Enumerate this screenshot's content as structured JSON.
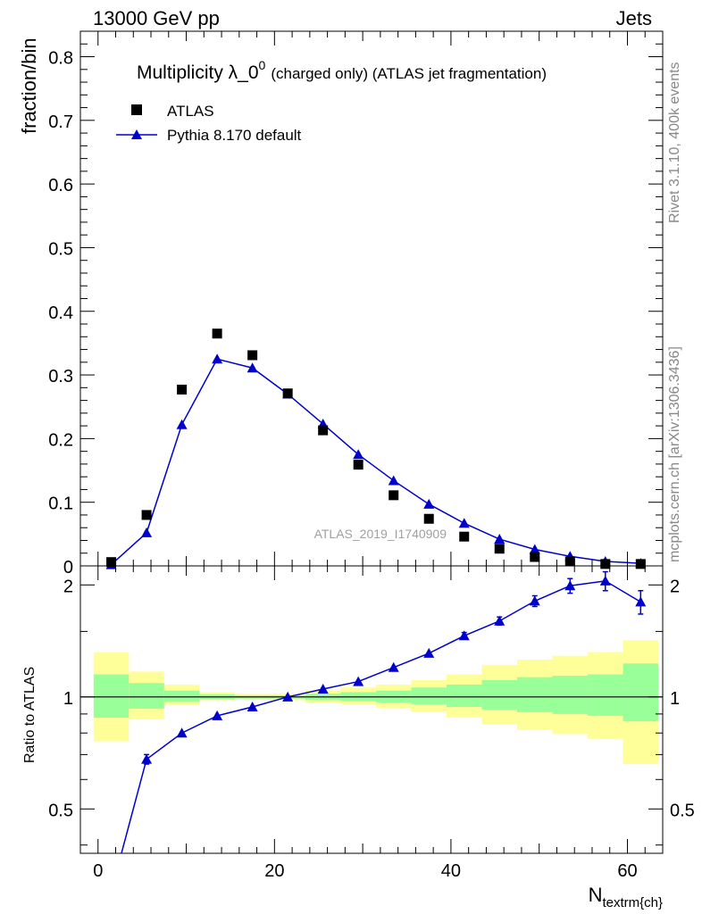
{
  "header": {
    "left": "13000 GeV pp",
    "right": "Jets"
  },
  "side_labels": {
    "rivet": "Rivet 3.1.10,  400k events",
    "mcplots": "mcplots.cern.ch [arXiv:1306.3436]"
  },
  "watermark": "ATLAS_2019_I1740909",
  "colors": {
    "data": "#000000",
    "mc": "#0000cc",
    "band_inner": "#99ff99",
    "band_outer": "#ffff99"
  },
  "chart_data": [
    {
      "type": "scatter",
      "title_main": "Multiplicity λ_0",
      "title_sup": "0",
      "title_suffix": "(charged only) (ATLAS jet fragmentation)",
      "ylabel": "fraction/bin",
      "xlim": [
        -2,
        64
      ],
      "ylim": [
        0,
        0.84
      ],
      "yticks": [
        0,
        0.1,
        0.2,
        0.3,
        0.4,
        0.5,
        0.6,
        0.7,
        0.8
      ],
      "ytick_labels": [
        "0",
        "0.1",
        "0.2",
        "0.3",
        "0.4",
        "0.5",
        "0.6",
        "0.7",
        "0.8"
      ],
      "legend_position": "top-left",
      "series": [
        {
          "name": "ATLAS",
          "marker": "square",
          "x": [
            1.5,
            5.5,
            9.5,
            13.5,
            17.5,
            21.5,
            25.5,
            29.5,
            33.5,
            37.5,
            41.5,
            45.5,
            49.5,
            53.5,
            57.5,
            61.5
          ],
          "y": [
            0.006,
            0.08,
            0.277,
            0.365,
            0.331,
            0.271,
            0.213,
            0.159,
            0.111,
            0.074,
            0.046,
            0.027,
            0.014,
            0.007,
            0.003,
            0.003
          ]
        },
        {
          "name": "Pythia 8.170 default",
          "marker": "triangle",
          "x": [
            1.5,
            5.5,
            9.5,
            13.5,
            17.5,
            21.5,
            25.5,
            29.5,
            33.5,
            37.5,
            41.5,
            45.5,
            49.5,
            53.5,
            57.5,
            61.5
          ],
          "y": [
            0.002,
            0.052,
            0.222,
            0.325,
            0.311,
            0.27,
            0.223,
            0.175,
            0.134,
            0.097,
            0.067,
            0.042,
            0.026,
            0.015,
            0.007,
            0.004
          ]
        }
      ]
    },
    {
      "type": "line",
      "ylabel": "Ratio to ATLAS",
      "xlabel": "N",
      "xlabel_sub": "textrm{ch}",
      "xlim": [
        -2,
        64
      ],
      "ylim": [
        0.38,
        2.25
      ],
      "log_y": true,
      "xticks": [
        0,
        20,
        40,
        60
      ],
      "xtick_labels": [
        "0",
        "20",
        "40",
        "60"
      ],
      "yticks": [
        0.5,
        1,
        2
      ],
      "ytick_labels": [
        "0.5",
        "1",
        "2"
      ],
      "bands": {
        "x_edges": [
          -0.5,
          3.5,
          7.5,
          11.5,
          15.5,
          19.5,
          23.5,
          27.5,
          31.5,
          35.5,
          39.5,
          43.5,
          47.5,
          51.5,
          55.5,
          59.5,
          63.5
        ],
        "inner_low": [
          0.88,
          0.93,
          0.97,
          0.985,
          0.99,
          0.99,
          0.98,
          0.975,
          0.965,
          0.955,
          0.94,
          0.925,
          0.91,
          0.9,
          0.89,
          0.86
        ],
        "inner_high": [
          1.15,
          1.09,
          1.04,
          1.015,
          1.01,
          1.01,
          1.02,
          1.03,
          1.04,
          1.06,
          1.08,
          1.11,
          1.13,
          1.14,
          1.15,
          1.23
        ],
        "outer_low": [
          0.76,
          0.87,
          0.95,
          0.98,
          0.985,
          0.98,
          0.965,
          0.955,
          0.935,
          0.91,
          0.88,
          0.845,
          0.815,
          0.795,
          0.77,
          0.66
        ],
        "outer_high": [
          1.32,
          1.17,
          1.08,
          1.03,
          1.02,
          1.02,
          1.04,
          1.06,
          1.08,
          1.11,
          1.15,
          1.22,
          1.26,
          1.29,
          1.32,
          1.42
        ]
      },
      "series": [
        {
          "name": "Pythia 8.170 default",
          "x": [
            1.5,
            5.5,
            9.5,
            13.5,
            17.5,
            21.5,
            25.5,
            29.5,
            33.5,
            37.5,
            41.5,
            45.5,
            49.5,
            53.5,
            57.5,
            61.5
          ],
          "y": [
            0.3,
            0.68,
            0.8,
            0.89,
            0.94,
            1.0,
            1.05,
            1.1,
            1.2,
            1.31,
            1.46,
            1.6,
            1.81,
            1.99,
            2.05,
            1.8
          ],
          "yerr": [
            0.0,
            0.02,
            0.0,
            0.0,
            0.0,
            0.0,
            0.0,
            0.0,
            0.0,
            0.0,
            0.03,
            0.04,
            0.06,
            0.09,
            0.12,
            0.13
          ]
        }
      ]
    }
  ]
}
